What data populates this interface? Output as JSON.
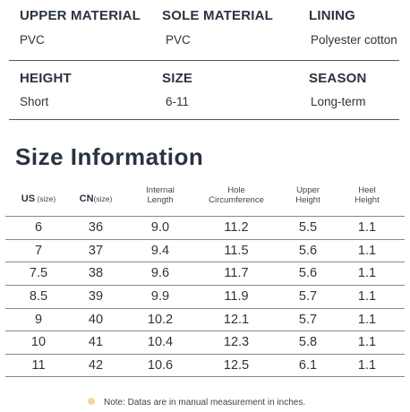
{
  "specs": [
    [
      {
        "label": "UPPER MATERIAL",
        "value": "PVC"
      },
      {
        "label": "SOLE MATERIAL",
        "value": "PVC"
      },
      {
        "label": "LINING",
        "value": "Polyester cotton"
      }
    ],
    [
      {
        "label": "HEIGHT",
        "value": "Short"
      },
      {
        "label": "SIZE",
        "value": "6-11"
      },
      {
        "label": "SEASON",
        "value": "Long-term"
      }
    ]
  ],
  "size_info": {
    "title": "Size  Information",
    "headers": {
      "us": {
        "main": "US",
        "unit": " (size)"
      },
      "cn": {
        "main": "CN",
        "unit": "(size)"
      },
      "internal_1": "Internal",
      "internal_2": "Length",
      "hole_1": "Hole",
      "hole_2": "Circumference",
      "upper_1": "Upper",
      "upper_2": "Height",
      "heel_1": "Heel",
      "heel_2": "Height"
    },
    "rows": [
      [
        "6",
        "36",
        "9.0",
        "11.2",
        "5.5",
        "1.1"
      ],
      [
        "7",
        "37",
        "9.4",
        "11.5",
        "5.6",
        "1.1"
      ],
      [
        "7.5",
        "38",
        "9.6",
        "11.7",
        "5.6",
        "1.1"
      ],
      [
        "8.5",
        "39",
        "9.9",
        "11.9",
        "5.7",
        "1.1"
      ],
      [
        "9",
        "40",
        "10.2",
        "12.1",
        "5.7",
        "1.1"
      ],
      [
        "10",
        "41",
        "10.4",
        "12.3",
        "5.8",
        "1.1"
      ],
      [
        "11",
        "42",
        "10.6",
        "12.5",
        "6.1",
        "1.1"
      ]
    ],
    "note": "Note: Datas are in manual measurement in inches."
  }
}
